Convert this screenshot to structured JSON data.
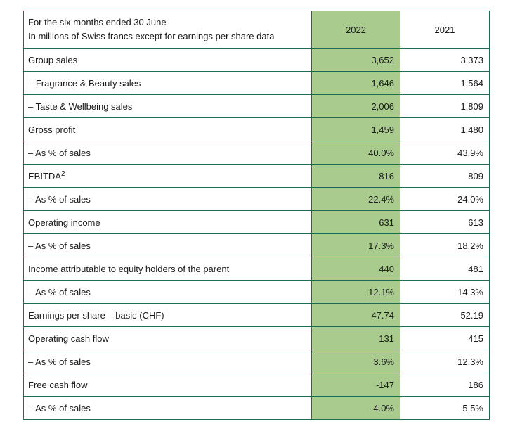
{
  "header": {
    "line1": "For the six months ended 30 June",
    "line2": "In millions of Swiss francs except for earnings per share data",
    "year_2022": "2022",
    "year_2021": "2021"
  },
  "rows": [
    {
      "label": "Group sales",
      "v2022": "3,652",
      "v2021": "3,373"
    },
    {
      "label": "– Fragrance & Beauty sales",
      "v2022": "1,646",
      "v2021": "1,564"
    },
    {
      "label": "– Taste & Wellbeing sales",
      "v2022": "2,006",
      "v2021": "1,809"
    },
    {
      "label": "Gross profit",
      "v2022": "1,459",
      "v2021": "1,480"
    },
    {
      "label": "– As % of sales",
      "v2022": "40.0%",
      "v2021": "43.9%"
    },
    {
      "label": "EBITDA",
      "sup": "2",
      "v2022": "816",
      "v2021": "809"
    },
    {
      "label": "– As % of sales",
      "v2022": "22.4%",
      "v2021": "24.0%"
    },
    {
      "label": "Operating income",
      "v2022": "631",
      "v2021": "613"
    },
    {
      "label": "– As % of sales",
      "v2022": "17.3%",
      "v2021": "18.2%"
    },
    {
      "label": "Income attributable to equity holders of the parent",
      "v2022": "440",
      "v2021": "481"
    },
    {
      "label": "– As % of sales",
      "v2022": "12.1%",
      "v2021": "14.3%"
    },
    {
      "label": "Earnings per share – basic (CHF)",
      "v2022": "47.74",
      "v2021": "52.19"
    },
    {
      "label": "Operating cash flow",
      "v2022": "131",
      "v2021": "415"
    },
    {
      "label": "– As % of sales",
      "v2022": "3.6%",
      "v2021": "12.3%"
    },
    {
      "label": "Free cash flow",
      "v2022": "-147",
      "v2021": "186"
    },
    {
      "label": "– As % of sales",
      "v2022": "-4.0%",
      "v2021": "5.5%"
    }
  ],
  "colors": {
    "border": "#1f6b52",
    "highlight_2022": "#a9cc8e"
  }
}
